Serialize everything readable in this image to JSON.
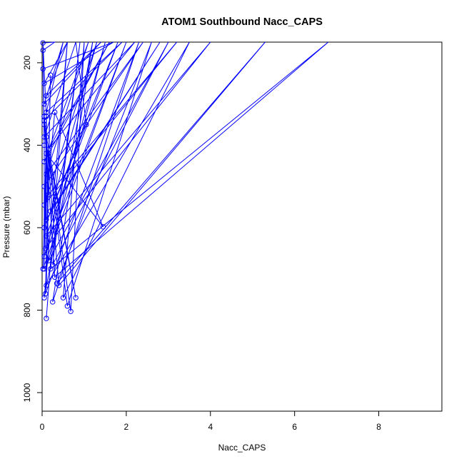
{
  "chart_data": {
    "type": "line",
    "title": "ATOM1 Southbound Nacc_CAPS",
    "xlabel": "Nacc_CAPS",
    "ylabel": "Pressure (mbar)",
    "xlim": [
      0,
      9.5
    ],
    "ylim": [
      1045,
      150
    ],
    "y_axis_reversed": true,
    "xticks": [
      0,
      2,
      4,
      6,
      8
    ],
    "yticks": [
      200,
      400,
      600,
      800,
      1000
    ],
    "grid": false,
    "legend": "none",
    "colors": {
      "series": "#0000ff",
      "axis": "#000000"
    },
    "marker": "open-circle",
    "series": [
      {
        "points": [
          {
            "x": 0.1,
            "y": 820
          },
          {
            "x": 0.6,
            "y": 150
          },
          {
            "x": 0.05,
            "y": 770
          },
          {
            "x": 1.2,
            "y": 150
          },
          {
            "x": 0.25,
            "y": 780
          },
          {
            "x": 2.3,
            "y": 150
          },
          {
            "x": 0.08,
            "y": 760
          },
          {
            "x": 0.2,
            "y": 230
          },
          {
            "x": 0.1,
            "y": 740
          },
          {
            "x": 3.5,
            "y": 150
          },
          {
            "x": 0.5,
            "y": 770
          },
          {
            "x": 1.0,
            "y": 150
          },
          {
            "x": 0.68,
            "y": 803
          },
          {
            "x": 0.15,
            "y": 420
          },
          {
            "x": 0.8,
            "y": 770
          },
          {
            "x": 0.05,
            "y": 350
          },
          {
            "x": 0.6,
            "y": 790
          },
          {
            "x": 2.6,
            "y": 150
          },
          {
            "x": 0.35,
            "y": 735
          },
          {
            "x": 5.3,
            "y": 150
          },
          {
            "x": 0.4,
            "y": 740
          },
          {
            "x": 0.05,
            "y": 330
          },
          {
            "x": 0.3,
            "y": 720
          },
          {
            "x": 6.8,
            "y": 150
          },
          {
            "x": 0.2,
            "y": 700
          },
          {
            "x": 0.9,
            "y": 150
          },
          {
            "x": 0.25,
            "y": 690
          },
          {
            "x": 3.0,
            "y": 150
          },
          {
            "x": 0.05,
            "y": 700
          },
          {
            "x": 0.1,
            "y": 330
          },
          {
            "x": 0.15,
            "y": 680
          },
          {
            "x": 1.5,
            "y": 150
          },
          {
            "x": 0.05,
            "y": 670
          },
          {
            "x": 2.0,
            "y": 150
          },
          {
            "x": 0.02,
            "y": 700
          },
          {
            "x": 0.1,
            "y": 380
          },
          {
            "x": 0.08,
            "y": 650
          },
          {
            "x": 4.0,
            "y": 150
          },
          {
            "x": 0.1,
            "y": 620
          },
          {
            "x": 1.8,
            "y": 150
          },
          {
            "x": 0.05,
            "y": 600
          },
          {
            "x": 0.3,
            "y": 320
          },
          {
            "x": 1.45,
            "y": 598
          },
          {
            "x": 0.1,
            "y": 420
          },
          {
            "x": 0.1,
            "y": 580
          },
          {
            "x": 2.8,
            "y": 150
          },
          {
            "x": 0.2,
            "y": 560
          },
          {
            "x": 1.3,
            "y": 150
          },
          {
            "x": 0.05,
            "y": 545
          },
          {
            "x": 3.2,
            "y": 150
          },
          {
            "x": 0.15,
            "y": 520
          },
          {
            "x": 0.05,
            "y": 330
          },
          {
            "x": 0.05,
            "y": 500
          },
          {
            "x": 2.4,
            "y": 150
          },
          {
            "x": 0.1,
            "y": 470
          },
          {
            "x": 1.1,
            "y": 150
          },
          {
            "x": 0.05,
            "y": 440
          },
          {
            "x": 1.6,
            "y": 150
          },
          {
            "x": 0.15,
            "y": 410
          },
          {
            "x": 2.2,
            "y": 150
          },
          {
            "x": 0.05,
            "y": 380
          },
          {
            "x": 0.8,
            "y": 150
          },
          {
            "x": 1.05,
            "y": 350
          },
          {
            "x": 0.05,
            "y": 600
          },
          {
            "x": 0.05,
            "y": 340
          },
          {
            "x": 1.9,
            "y": 150
          },
          {
            "x": 0.1,
            "y": 320
          },
          {
            "x": 0.5,
            "y": 150
          },
          {
            "x": 0.05,
            "y": 300
          },
          {
            "x": 1.4,
            "y": 150
          },
          {
            "x": 0.1,
            "y": 280
          },
          {
            "x": 0.6,
            "y": 150
          },
          {
            "x": 0.05,
            "y": 250
          },
          {
            "x": 1.7,
            "y": 150
          },
          {
            "x": 0.02,
            "y": 215
          },
          {
            "x": 0.05,
            "y": 400
          },
          {
            "x": 0.02,
            "y": 170
          },
          {
            "x": 0.3,
            "y": 150
          },
          {
            "x": 0.02,
            "y": 152
          },
          {
            "x": 0.1,
            "y": 330
          }
        ]
      }
    ]
  }
}
